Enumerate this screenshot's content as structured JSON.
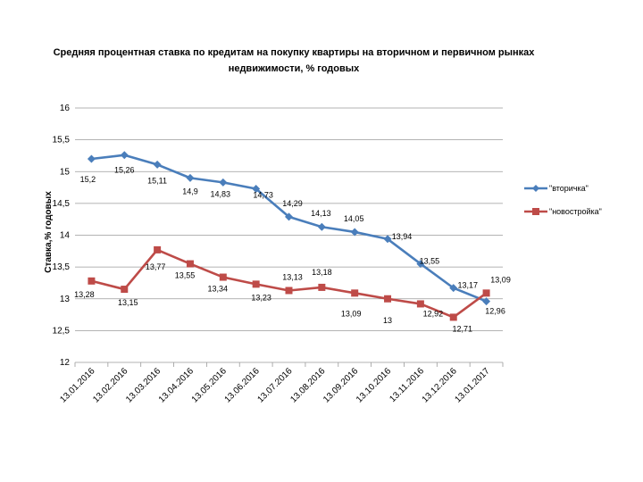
{
  "chart_data": {
    "type": "line",
    "title_line1": "Средняя процентная ставка по кредитам на покупку квартиры на вторичном и первичном рынках",
    "title_line2": "недвижимости, % годовых",
    "ylabel": "Ставка,% годовых",
    "xlabel": "",
    "ylim": [
      12,
      16
    ],
    "yticks": [
      "12",
      "12,5",
      "13",
      "13,5",
      "14",
      "14,5",
      "15",
      "15,5",
      "16"
    ],
    "categories": [
      "13.01.2016",
      "13.02.2016",
      "13.03.2016",
      "13.04.2016",
      "13.05.2016",
      "13.06.2016",
      "13.07.2016",
      "13.08.2016",
      "13.09.2016",
      "13.10.2016",
      "13.11.2016",
      "13.12.2016",
      "13.01.2017"
    ],
    "series": [
      {
        "name": "\"вторичка\"",
        "color": "#4a7ebb",
        "marker": "diamond",
        "values": [
          15.2,
          15.26,
          15.11,
          14.9,
          14.83,
          14.73,
          14.29,
          14.13,
          14.05,
          13.94,
          13.55,
          13.17,
          12.96
        ],
        "labels": [
          "15,2",
          "15,26",
          "15,11",
          "14,9",
          "14,83",
          "14,73",
          "14,29",
          "14,13",
          "14,05",
          "13,94",
          "13,55",
          "13,17",
          "12,96"
        ]
      },
      {
        "name": "\"новостройка\"",
        "color": "#be4b48",
        "marker": "square",
        "values": [
          13.28,
          13.15,
          13.77,
          13.55,
          13.34,
          13.23,
          13.13,
          13.18,
          13.09,
          13.0,
          12.92,
          12.71,
          13.09
        ],
        "labels": [
          "13,28",
          "13,15",
          "13,77",
          "13,55",
          "13,34",
          "13,23",
          "13,13",
          "13,18",
          "13,09",
          "13",
          "12,92",
          "12,71",
          "13,09"
        ]
      }
    ],
    "legend_position": "right",
    "grid": true
  }
}
